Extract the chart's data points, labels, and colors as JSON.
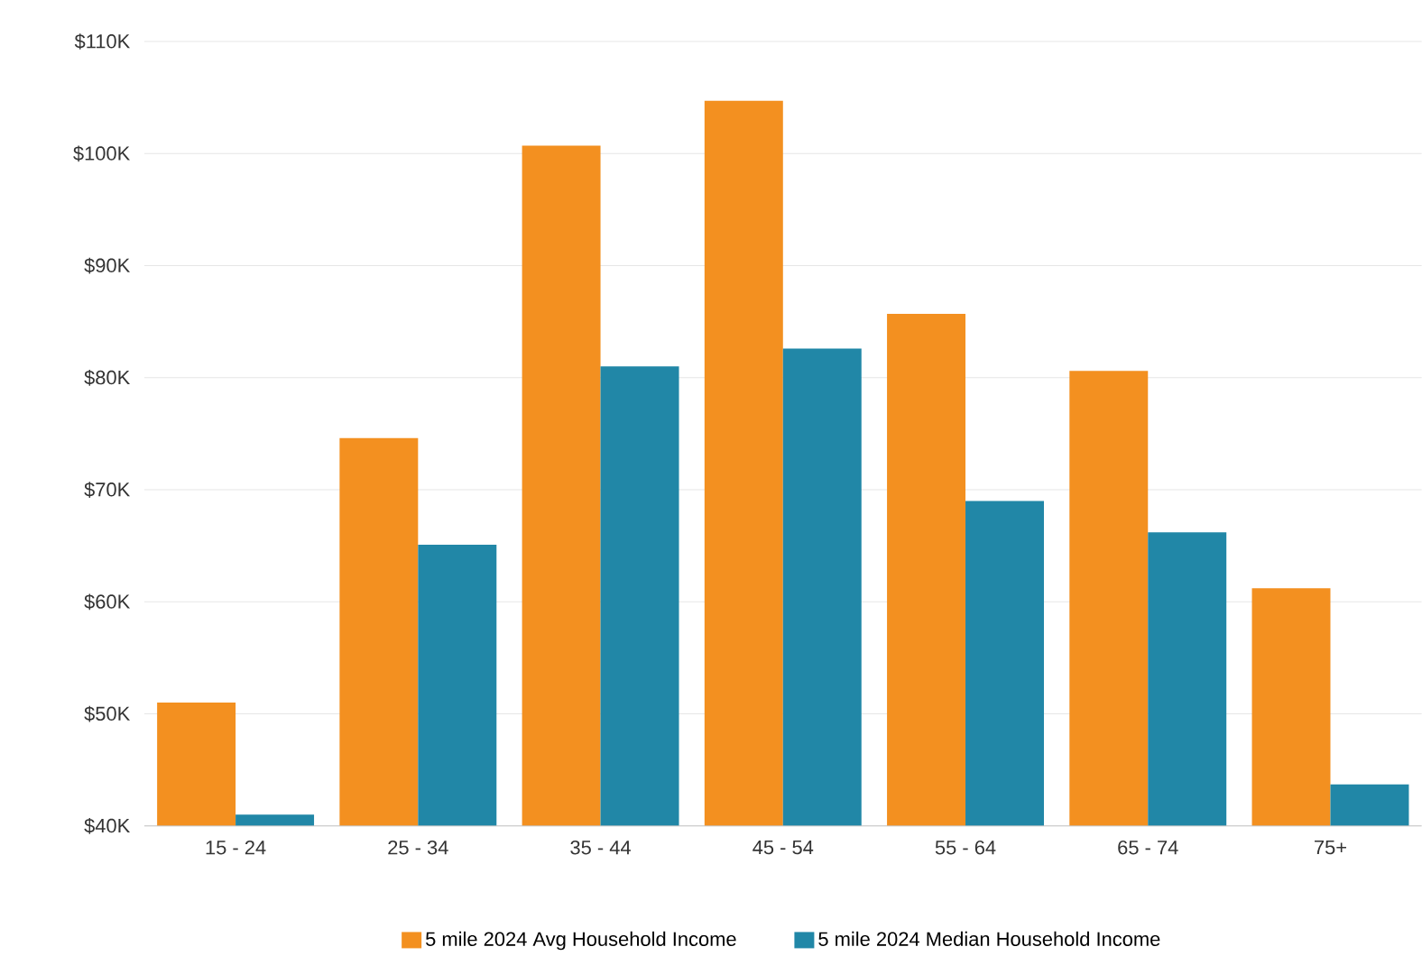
{
  "chart_data": {
    "type": "bar",
    "categories": [
      "15 - 24",
      "25 - 34",
      "35 - 44",
      "45 - 54",
      "55 - 64",
      "65 - 74",
      "75+"
    ],
    "series": [
      {
        "name": "5 mile 2024 Avg Household Income",
        "color": "#f39020",
        "values": [
          51,
          74.6,
          100.7,
          104.7,
          85.7,
          80.6,
          61.2
        ]
      },
      {
        "name": "5 mile 2024 Median Household Income",
        "color": "#2187a7",
        "values": [
          41,
          65.1,
          81,
          82.6,
          69,
          66.2,
          43.7
        ]
      }
    ],
    "ylim": [
      40,
      110
    ],
    "yticks": [
      {
        "value": 40,
        "label": "$40K"
      },
      {
        "value": 50,
        "label": "$50K"
      },
      {
        "value": 60,
        "label": "$60K"
      },
      {
        "value": 70,
        "label": "$70K"
      },
      {
        "value": 80,
        "label": "$80K"
      },
      {
        "value": 90,
        "label": "$90K"
      },
      {
        "value": 100,
        "label": "$100K"
      },
      {
        "value": 110,
        "label": "$110K"
      }
    ],
    "grid": "y",
    "legend": "bottom"
  }
}
